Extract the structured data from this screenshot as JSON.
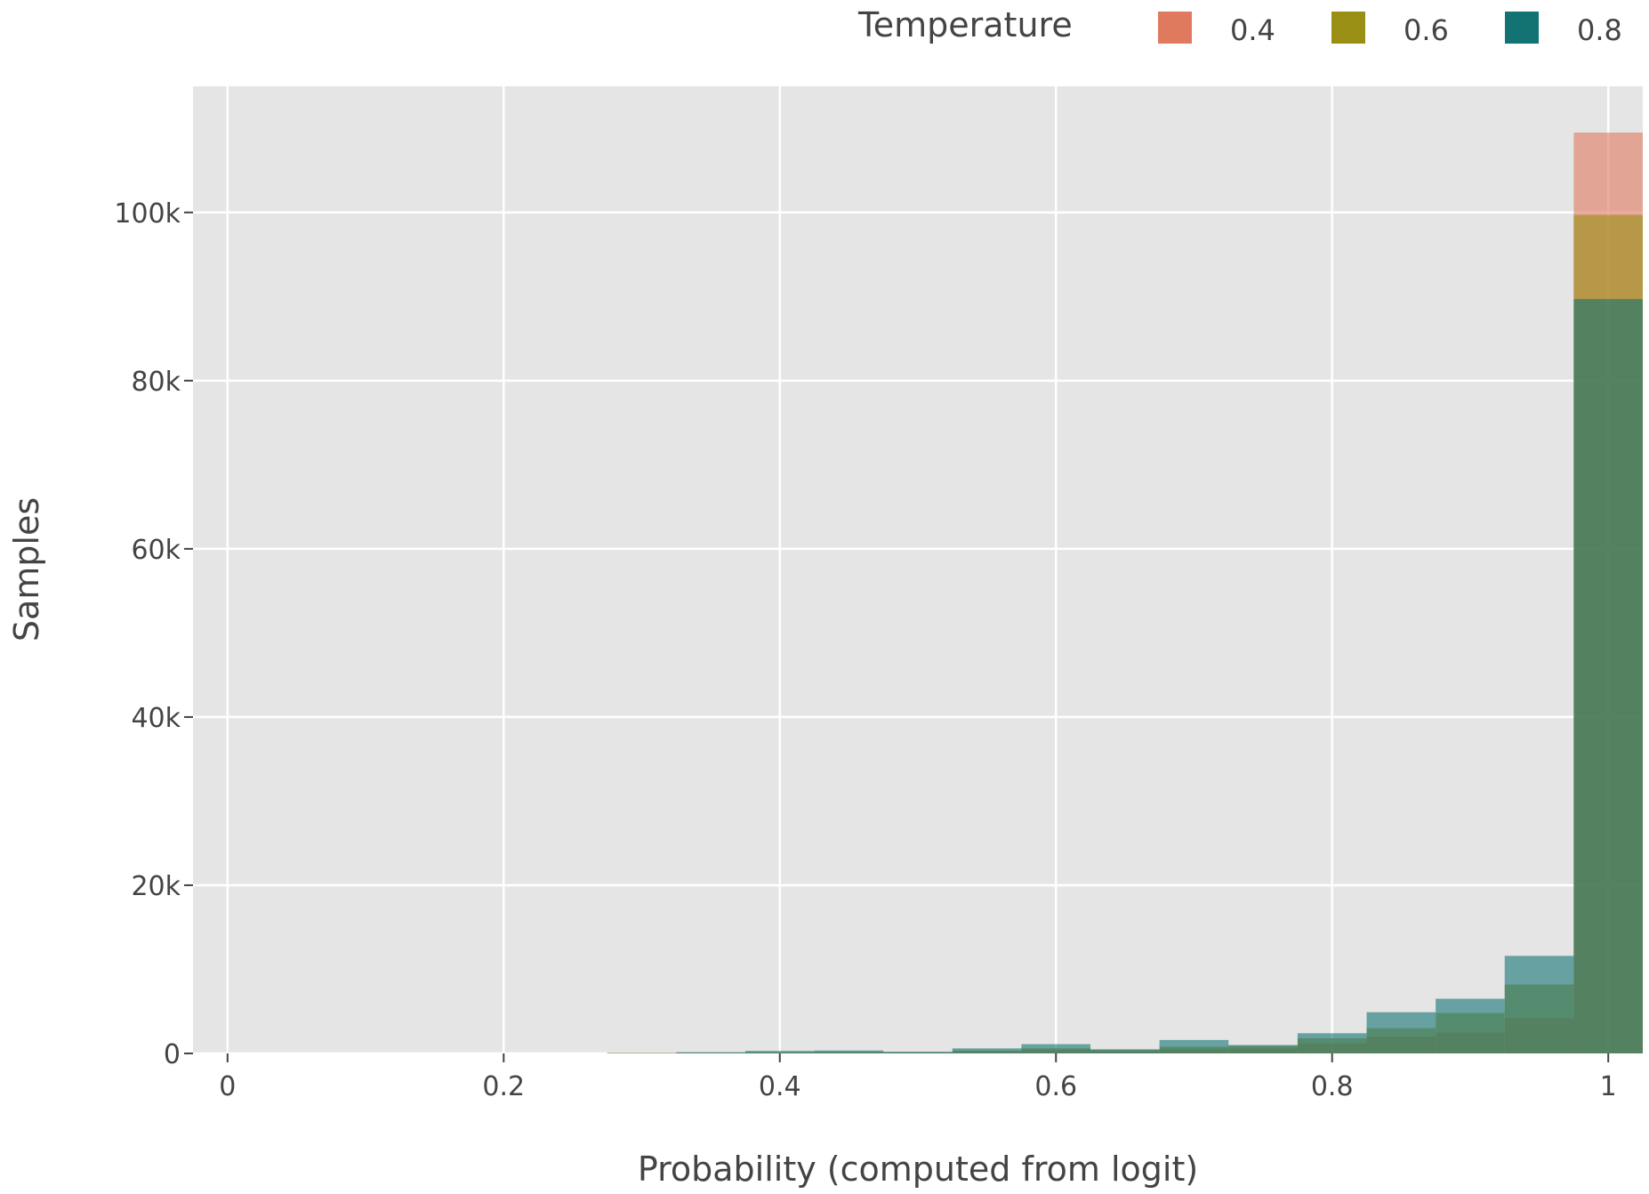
{
  "chart_data": {
    "type": "bar",
    "xlabel": "Probability (computed from logit)",
    "ylabel": "Samples",
    "xlim": [
      -0.025,
      1.025
    ],
    "ylim": [
      0,
      115000
    ],
    "grid": true,
    "bin_width": 0.05,
    "x_ticks": [
      {
        "value": 0,
        "label": "0"
      },
      {
        "value": 0.2,
        "label": "0.2"
      },
      {
        "value": 0.4,
        "label": "0.4"
      },
      {
        "value": 0.6,
        "label": "0.6"
      },
      {
        "value": 0.8,
        "label": "0.8"
      },
      {
        "value": 1,
        "label": "1"
      }
    ],
    "y_ticks": [
      {
        "value": 0,
        "label": "0"
      },
      {
        "value": 20000,
        "label": "20k"
      },
      {
        "value": 40000,
        "label": "40k"
      },
      {
        "value": 60000,
        "label": "60k"
      },
      {
        "value": 80000,
        "label": "80k"
      },
      {
        "value": 100000,
        "label": "100k"
      }
    ],
    "legend": {
      "title": "Temperature",
      "placement": "top-right"
    },
    "x": [
      0.3,
      0.35,
      0.4,
      0.45,
      0.5,
      0.55,
      0.6,
      0.65,
      0.7,
      0.75,
      0.8,
      0.85,
      0.9,
      0.95,
      1.0
    ],
    "series": [
      {
        "name": "0.4",
        "color": "#e07a5f",
        "values": [
          80,
          60,
          100,
          150,
          100,
          250,
          400,
          300,
          500,
          600,
          1200,
          2000,
          2500,
          4200,
          109500
        ]
      },
      {
        "name": "0.6",
        "color": "#9a8f15",
        "values": [
          50,
          100,
          150,
          200,
          150,
          350,
          600,
          400,
          800,
          900,
          1800,
          3000,
          4800,
          8200,
          99700
        ]
      },
      {
        "name": "0.8",
        "color": "#137373",
        "values": [
          40,
          150,
          300,
          350,
          200,
          600,
          1100,
          500,
          1600,
          1000,
          2400,
          4900,
          6500,
          11600,
          89700
        ]
      }
    ]
  }
}
